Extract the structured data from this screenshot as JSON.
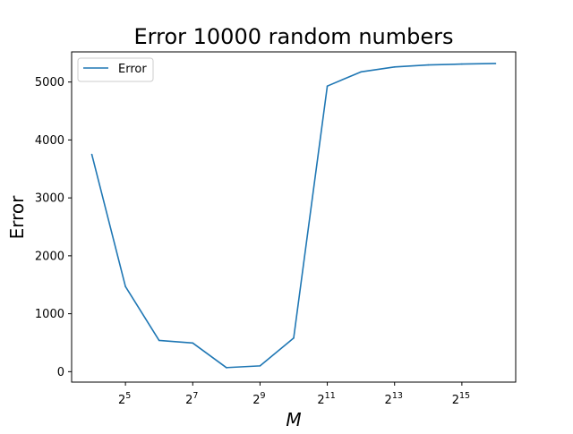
{
  "chart_data": {
    "type": "line",
    "title": "Error 10000 random numbers",
    "xlabel": "M",
    "ylabel": "Error",
    "x_scale": "log2",
    "x": [
      16,
      32,
      64,
      128,
      256,
      512,
      1024,
      2048,
      4096,
      8192,
      16384,
      32768,
      65536
    ],
    "x_ticks": [
      {
        "value": 32,
        "base": "2",
        "exp": "5"
      },
      {
        "value": 128,
        "base": "2",
        "exp": "7"
      },
      {
        "value": 512,
        "base": "2",
        "exp": "9"
      },
      {
        "value": 2048,
        "base": "2",
        "exp": "11"
      },
      {
        "value": 8192,
        "base": "2",
        "exp": "13"
      },
      {
        "value": 32768,
        "base": "2",
        "exp": "15"
      }
    ],
    "y_ticks": [
      0,
      1000,
      2000,
      3000,
      4000,
      5000
    ],
    "ylim": [
      -180,
      5520
    ],
    "grid": false,
    "legend_position": "upper-left",
    "series": [
      {
        "name": "Error",
        "color": "#1f77b4",
        "values": [
          3750,
          1470,
          540,
          495,
          70,
          100,
          580,
          4930,
          5175,
          5260,
          5295,
          5310,
          5320
        ]
      }
    ]
  }
}
